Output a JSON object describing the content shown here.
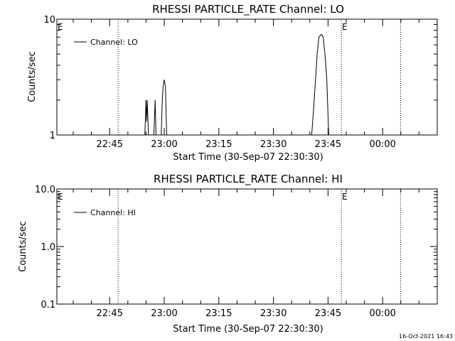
{
  "footer": {
    "timestamp": "16-Oct-2021 16:43"
  },
  "colors": {
    "background": "#ffffff",
    "foreground": "#000000"
  },
  "chart_data": [
    {
      "type": "line",
      "title": "RHESSI PARTICLE_RATE Channel: LO",
      "xlabel": "Start Time (30-Sep-07 22:30:30)",
      "ylabel": "Counts/sec",
      "yscale": "log",
      "ylim": [
        1,
        10
      ],
      "yticks": [
        {
          "value": 1,
          "label": "1"
        },
        {
          "value": 10,
          "label": "10"
        }
      ],
      "xlim": [
        "22:30:30",
        "00:15:00"
      ],
      "xticks": [
        "22:45",
        "23:00",
        "23:15",
        "23:30",
        "23:45",
        "00:00"
      ],
      "grid": false,
      "legend": {
        "position": "top-left",
        "entries": [
          "Channel: LO"
        ]
      },
      "annotations": [
        {
          "text": "E",
          "x": "22:30:30"
        },
        {
          "text": "E",
          "x": "23:48:40"
        }
      ],
      "vlines": [
        "22:47:20",
        "23:48:40",
        "00:04:55"
      ],
      "series": [
        {
          "name": "Channel: LO",
          "points": [
            [
              "22:54:40",
              1
            ],
            [
              "22:55:00",
              2
            ],
            [
              "22:55:10",
              1.3
            ],
            [
              "22:55:20",
              2
            ],
            [
              "22:55:40",
              1
            ],
            [
              "22:57:10",
              1
            ],
            [
              "22:57:30",
              2
            ],
            [
              "22:57:45",
              1
            ],
            [
              "22:59:10",
              1
            ],
            [
              "22:59:25",
              1.8
            ],
            [
              "22:59:40",
              2.6
            ],
            [
              "23:00:00",
              3
            ],
            [
              "23:00:20",
              2.6
            ],
            [
              "23:00:40",
              1
            ],
            [
              "23:40:30",
              1
            ],
            [
              "23:41:00",
              1.6
            ],
            [
              "23:41:30",
              2.8
            ],
            [
              "23:42:00",
              5
            ],
            [
              "23:42:30",
              7
            ],
            [
              "23:43:10",
              7.4
            ],
            [
              "23:43:40",
              7
            ],
            [
              "23:44:10",
              5
            ],
            [
              "23:44:40",
              3
            ],
            [
              "23:45:10",
              1
            ]
          ]
        }
      ]
    },
    {
      "type": "line",
      "title": "RHESSI PARTICLE_RATE Channel: HI",
      "xlabel": "Start Time (30-Sep-07 22:30:30)",
      "ylabel": "Counts/sec",
      "yscale": "log",
      "ylim": [
        0.1,
        10
      ],
      "yticks": [
        {
          "value": 0.1,
          "label": "0.1"
        },
        {
          "value": 1,
          "label": "1.0"
        },
        {
          "value": 10,
          "label": "10.0"
        }
      ],
      "xlim": [
        "22:30:30",
        "00:15:00"
      ],
      "xticks": [
        "22:45",
        "23:00",
        "23:15",
        "23:30",
        "23:45",
        "00:00"
      ],
      "grid": false,
      "legend": {
        "position": "top-left",
        "entries": [
          "Channel: HI"
        ]
      },
      "annotations": [
        {
          "text": "E",
          "x": "22:30:30"
        },
        {
          "text": "E",
          "x": "23:48:40"
        }
      ],
      "vlines": [
        "22:47:20",
        "23:48:40",
        "00:04:55"
      ],
      "series": [
        {
          "name": "Channel: HI",
          "points": []
        }
      ]
    }
  ]
}
